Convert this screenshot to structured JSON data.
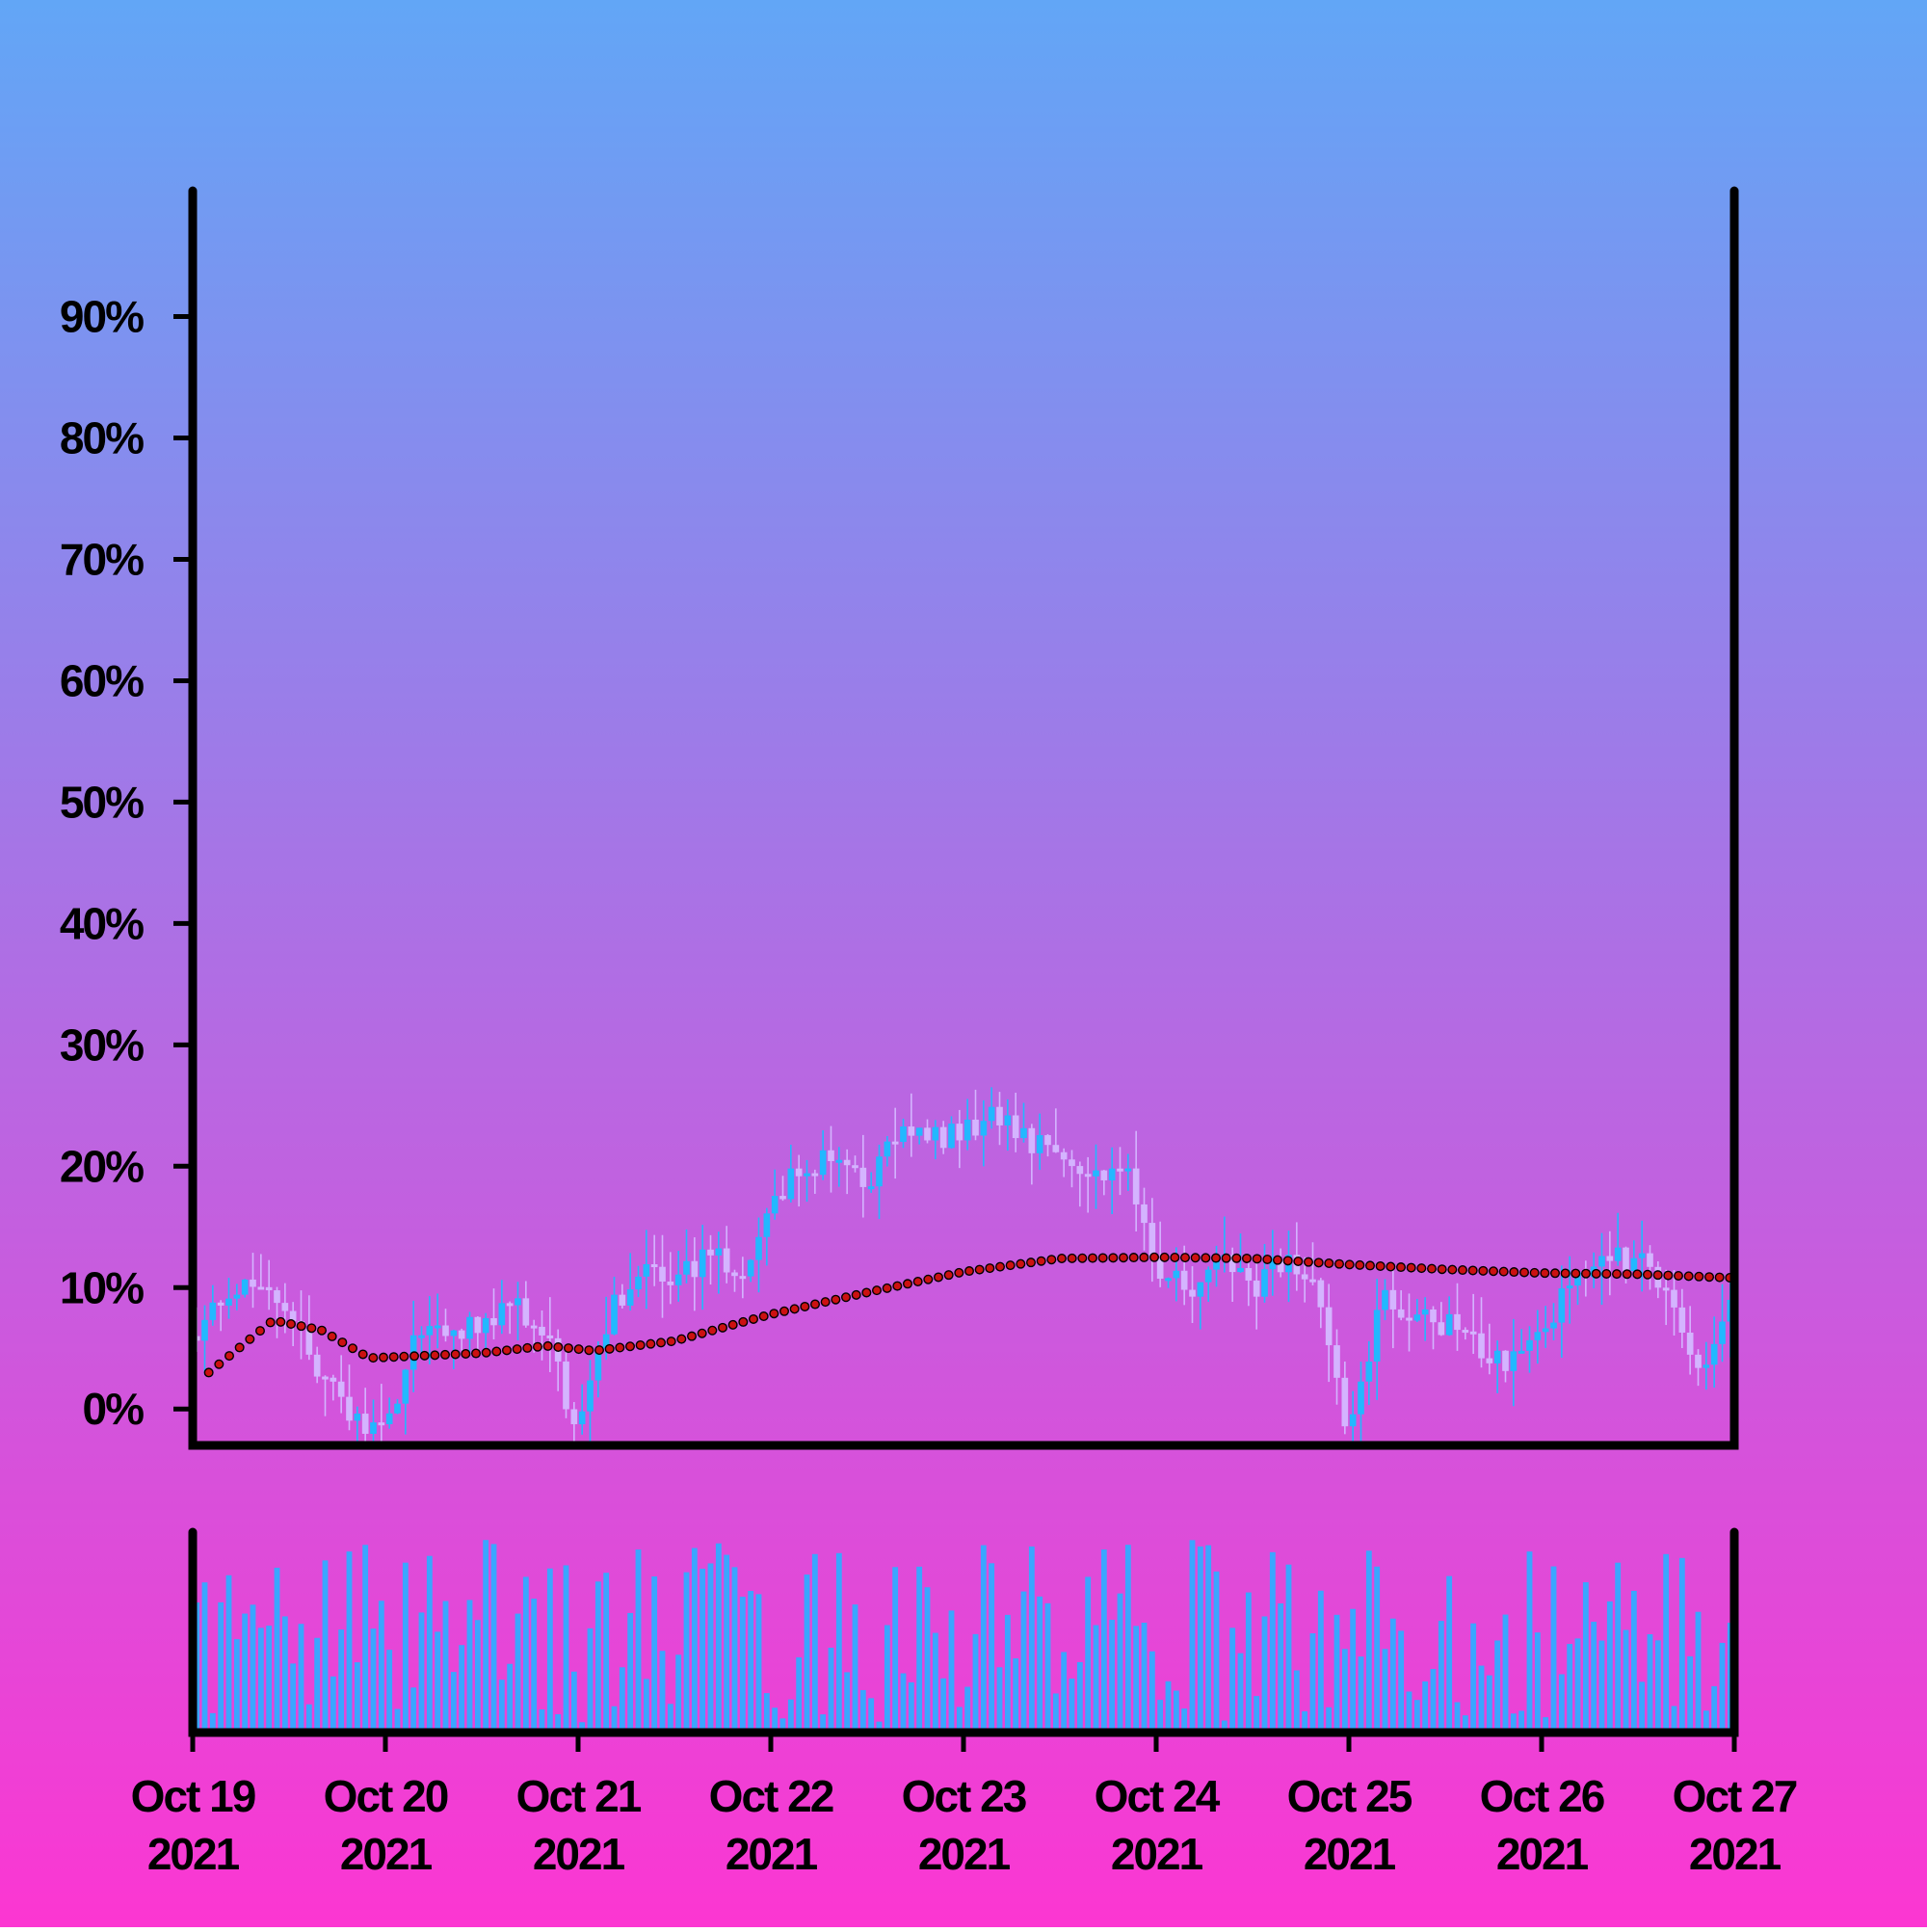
{
  "colors": {
    "background_top": "#62a6f6",
    "background_bottom": "#fc36d2",
    "candle_up": "#22b8ff",
    "candle_down": "#d4b4ff",
    "moving_average": "#cc1111",
    "moving_average_edge": "#000000",
    "volume_bar": "#3aa6ff",
    "axis": "#000000"
  },
  "chart_data": {
    "type": "candlestick",
    "title": "",
    "xlabel": "",
    "ylabel": "",
    "y_axis": {
      "ticks": [
        0,
        10,
        20,
        30,
        40,
        50,
        60,
        70,
        80,
        90
      ],
      "tick_labels": [
        "0%",
        "10%",
        "20%",
        "30%",
        "40%",
        "50%",
        "60%",
        "70%",
        "80%",
        "90%"
      ],
      "range": [
        -3,
        101
      ]
    },
    "x_axis": {
      "range": [
        "2021-10-19",
        "2021-10-27"
      ],
      "ticks": [
        "2021-10-19",
        "2021-10-20",
        "2021-10-21",
        "2021-10-22",
        "2021-10-23",
        "2021-10-24",
        "2021-10-25",
        "2021-10-26",
        "2021-10-27"
      ],
      "tick_labels": [
        [
          "Oct 19",
          "2021"
        ],
        [
          "Oct 20",
          "2021"
        ],
        [
          "Oct 21",
          "2021"
        ],
        [
          "Oct 22",
          "2021"
        ],
        [
          "Oct 23",
          "2021"
        ],
        [
          "Oct 24",
          "2021"
        ],
        [
          "Oct 25",
          "2021"
        ],
        [
          "Oct 26",
          "2021"
        ],
        [
          "Oct 27",
          "2021"
        ]
      ]
    },
    "grid": false,
    "legend": "none",
    "series": [
      {
        "kind": "candlestick",
        "interval": "1h",
        "close_anchors": [
          [
            "2021-10-19 00:00",
            6
          ],
          [
            "2021-10-19 04:00",
            9
          ],
          [
            "2021-10-19 08:00",
            11
          ],
          [
            "2021-10-19 12:00",
            8
          ],
          [
            "2021-10-19 16:00",
            3
          ],
          [
            "2021-10-19 20:00",
            -1
          ],
          [
            "2021-10-20 00:00",
            -2
          ],
          [
            "2021-10-20 04:00",
            7
          ],
          [
            "2021-10-20 08:00",
            6
          ],
          [
            "2021-10-20 12:00",
            7
          ],
          [
            "2021-10-20 16:00",
            9
          ],
          [
            "2021-10-20 20:00",
            6
          ],
          [
            "2021-10-21 00:00",
            -2
          ],
          [
            "2021-10-21 04:00",
            8
          ],
          [
            "2021-10-21 08:00",
            12
          ],
          [
            "2021-10-21 12:00",
            10
          ],
          [
            "2021-10-21 16:00",
            13
          ],
          [
            "2021-10-21 20:00",
            11
          ],
          [
            "2021-10-22 00:00",
            17
          ],
          [
            "2021-10-22 04:00",
            20
          ],
          [
            "2021-10-22 08:00",
            21
          ],
          [
            "2021-10-22 12:00",
            18
          ],
          [
            "2021-10-22 16:00",
            23
          ],
          [
            "2021-10-22 20:00",
            22
          ],
          [
            "2021-10-23 00:00",
            23
          ],
          [
            "2021-10-23 04:00",
            24
          ],
          [
            "2021-10-23 08:00",
            22
          ],
          [
            "2021-10-23 12:00",
            22
          ],
          [
            "2021-10-23 16:00",
            19
          ],
          [
            "2021-10-23 20:00",
            20
          ],
          [
            "2021-10-24 00:00",
            12
          ],
          [
            "2021-10-24 04:00",
            10
          ],
          [
            "2021-10-24 08:00",
            12
          ],
          [
            "2021-10-24 12:00",
            10
          ],
          [
            "2021-10-24 16:00",
            12
          ],
          [
            "2021-10-24 20:00",
            10
          ],
          [
            "2021-10-25 00:00",
            -2
          ],
          [
            "2021-10-25 04:00",
            9
          ],
          [
            "2021-10-25 08:00",
            8
          ],
          [
            "2021-10-25 12:00",
            7
          ],
          [
            "2021-10-25 16:00",
            5
          ],
          [
            "2021-10-25 20:00",
            4
          ],
          [
            "2021-10-26 00:00",
            7
          ],
          [
            "2021-10-26 04:00",
            10
          ],
          [
            "2021-10-26 08:00",
            13
          ],
          [
            "2021-10-26 12:00",
            12
          ],
          [
            "2021-10-26 16:00",
            10
          ],
          [
            "2021-10-26 20:00",
            2
          ],
          [
            "2021-10-27 00:00",
            10
          ]
        ]
      },
      {
        "kind": "moving_average",
        "values": [
          [
            "2021-10-19 02:00",
            3
          ],
          [
            "2021-10-19 10:00",
            7.3
          ],
          [
            "2021-10-19 16:00",
            6.5
          ],
          [
            "2021-10-19 22:00",
            4.2
          ],
          [
            "2021-10-20 12:00",
            4.6
          ],
          [
            "2021-10-20 20:00",
            5.2
          ],
          [
            "2021-10-21 02:00",
            4.8
          ],
          [
            "2021-10-21 12:00",
            5.6
          ],
          [
            "2021-10-22 00:00",
            7.8
          ],
          [
            "2021-10-22 12:00",
            9.6
          ],
          [
            "2021-10-23 00:00",
            11.3
          ],
          [
            "2021-10-23 12:00",
            12.4
          ],
          [
            "2021-10-24 00:00",
            12.5
          ],
          [
            "2021-10-24 12:00",
            12.4
          ],
          [
            "2021-10-25 00:00",
            11.9
          ],
          [
            "2021-10-25 12:00",
            11.5
          ],
          [
            "2021-10-26 00:00",
            11.2
          ],
          [
            "2021-10-26 12:00",
            11.1
          ],
          [
            "2021-10-27 00:00",
            10.8
          ]
        ]
      },
      {
        "kind": "volume",
        "interval": "1h"
      }
    ]
  }
}
